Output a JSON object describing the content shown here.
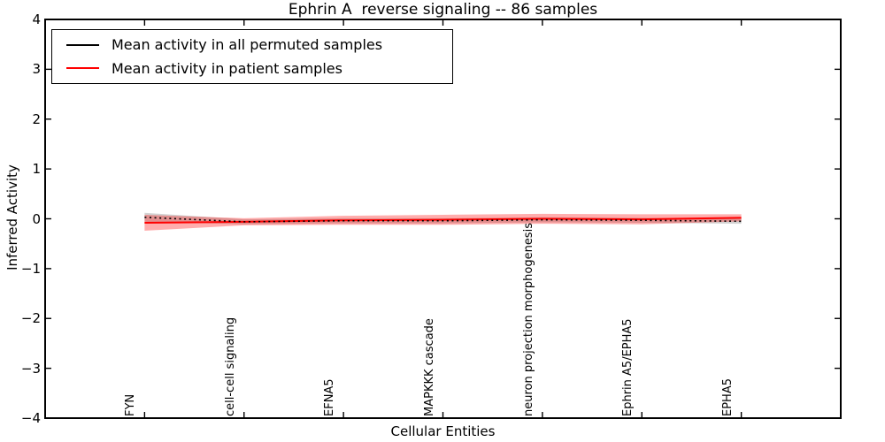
{
  "title": "Ephrin A  reverse signaling -- 86 samples",
  "legend": {
    "items": [
      {
        "label": "Mean activity in all permuted samples",
        "color": "#000000"
      },
      {
        "label": "Mean activity in patient samples",
        "color": "#ff0000"
      }
    ]
  },
  "axes": {
    "ylabel": "Inferred Activity",
    "xlabel": "Cellular Entities",
    "yticks": [
      "4",
      "3",
      "2",
      "1",
      "0",
      "−1",
      "−2",
      "−3",
      "−4"
    ],
    "ytick_values": [
      4,
      3,
      2,
      1,
      0,
      -1,
      -2,
      -3,
      -4
    ]
  },
  "colors": {
    "frame": "#000000",
    "background": "#ffffff",
    "permuted_line": "#000000",
    "patient_line": "#ff0000",
    "permuted_band": "rgba(128,128,128,0.35)",
    "patient_band": "rgba(255,0,0,0.32)"
  },
  "chart_data": {
    "type": "line",
    "title": "Ephrin A  reverse signaling -- 86 samples",
    "xlabel": "Cellular Entities",
    "ylabel": "Inferred Activity",
    "xlim": [
      -1,
      7
    ],
    "ylim": [
      -4,
      4
    ],
    "grid": false,
    "legend_position": "upper left",
    "categories": [
      "FYN",
      "cell-cell signaling",
      "EFNA5",
      "MAPKKK cascade",
      "neuron projection morphogenesis",
      "Ephrin A5/EPHA5",
      "EPHA5"
    ],
    "x": [
      0,
      1,
      2,
      3,
      4,
      5,
      6
    ],
    "series": [
      {
        "name": "Mean activity in all permuted samples",
        "color": "#000000",
        "style": "dotted",
        "values": [
          0.03,
          -0.06,
          -0.04,
          -0.04,
          -0.02,
          -0.03,
          -0.05
        ],
        "band_halfwidth": [
          0.09,
          0.05,
          0.05,
          0.05,
          0.05,
          0.05,
          0.05
        ],
        "band_color": "rgba(128,128,128,0.35)"
      },
      {
        "name": "Mean activity in patient samples",
        "color": "#ff0000",
        "style": "solid",
        "values": [
          -0.08,
          -0.06,
          -0.03,
          -0.02,
          0.0,
          -0.01,
          0.02
        ],
        "band_halfwidth": [
          0.16,
          0.07,
          0.09,
          0.1,
          0.1,
          0.1,
          0.07
        ],
        "band_color": "rgba(255,0,0,0.32)"
      }
    ]
  }
}
